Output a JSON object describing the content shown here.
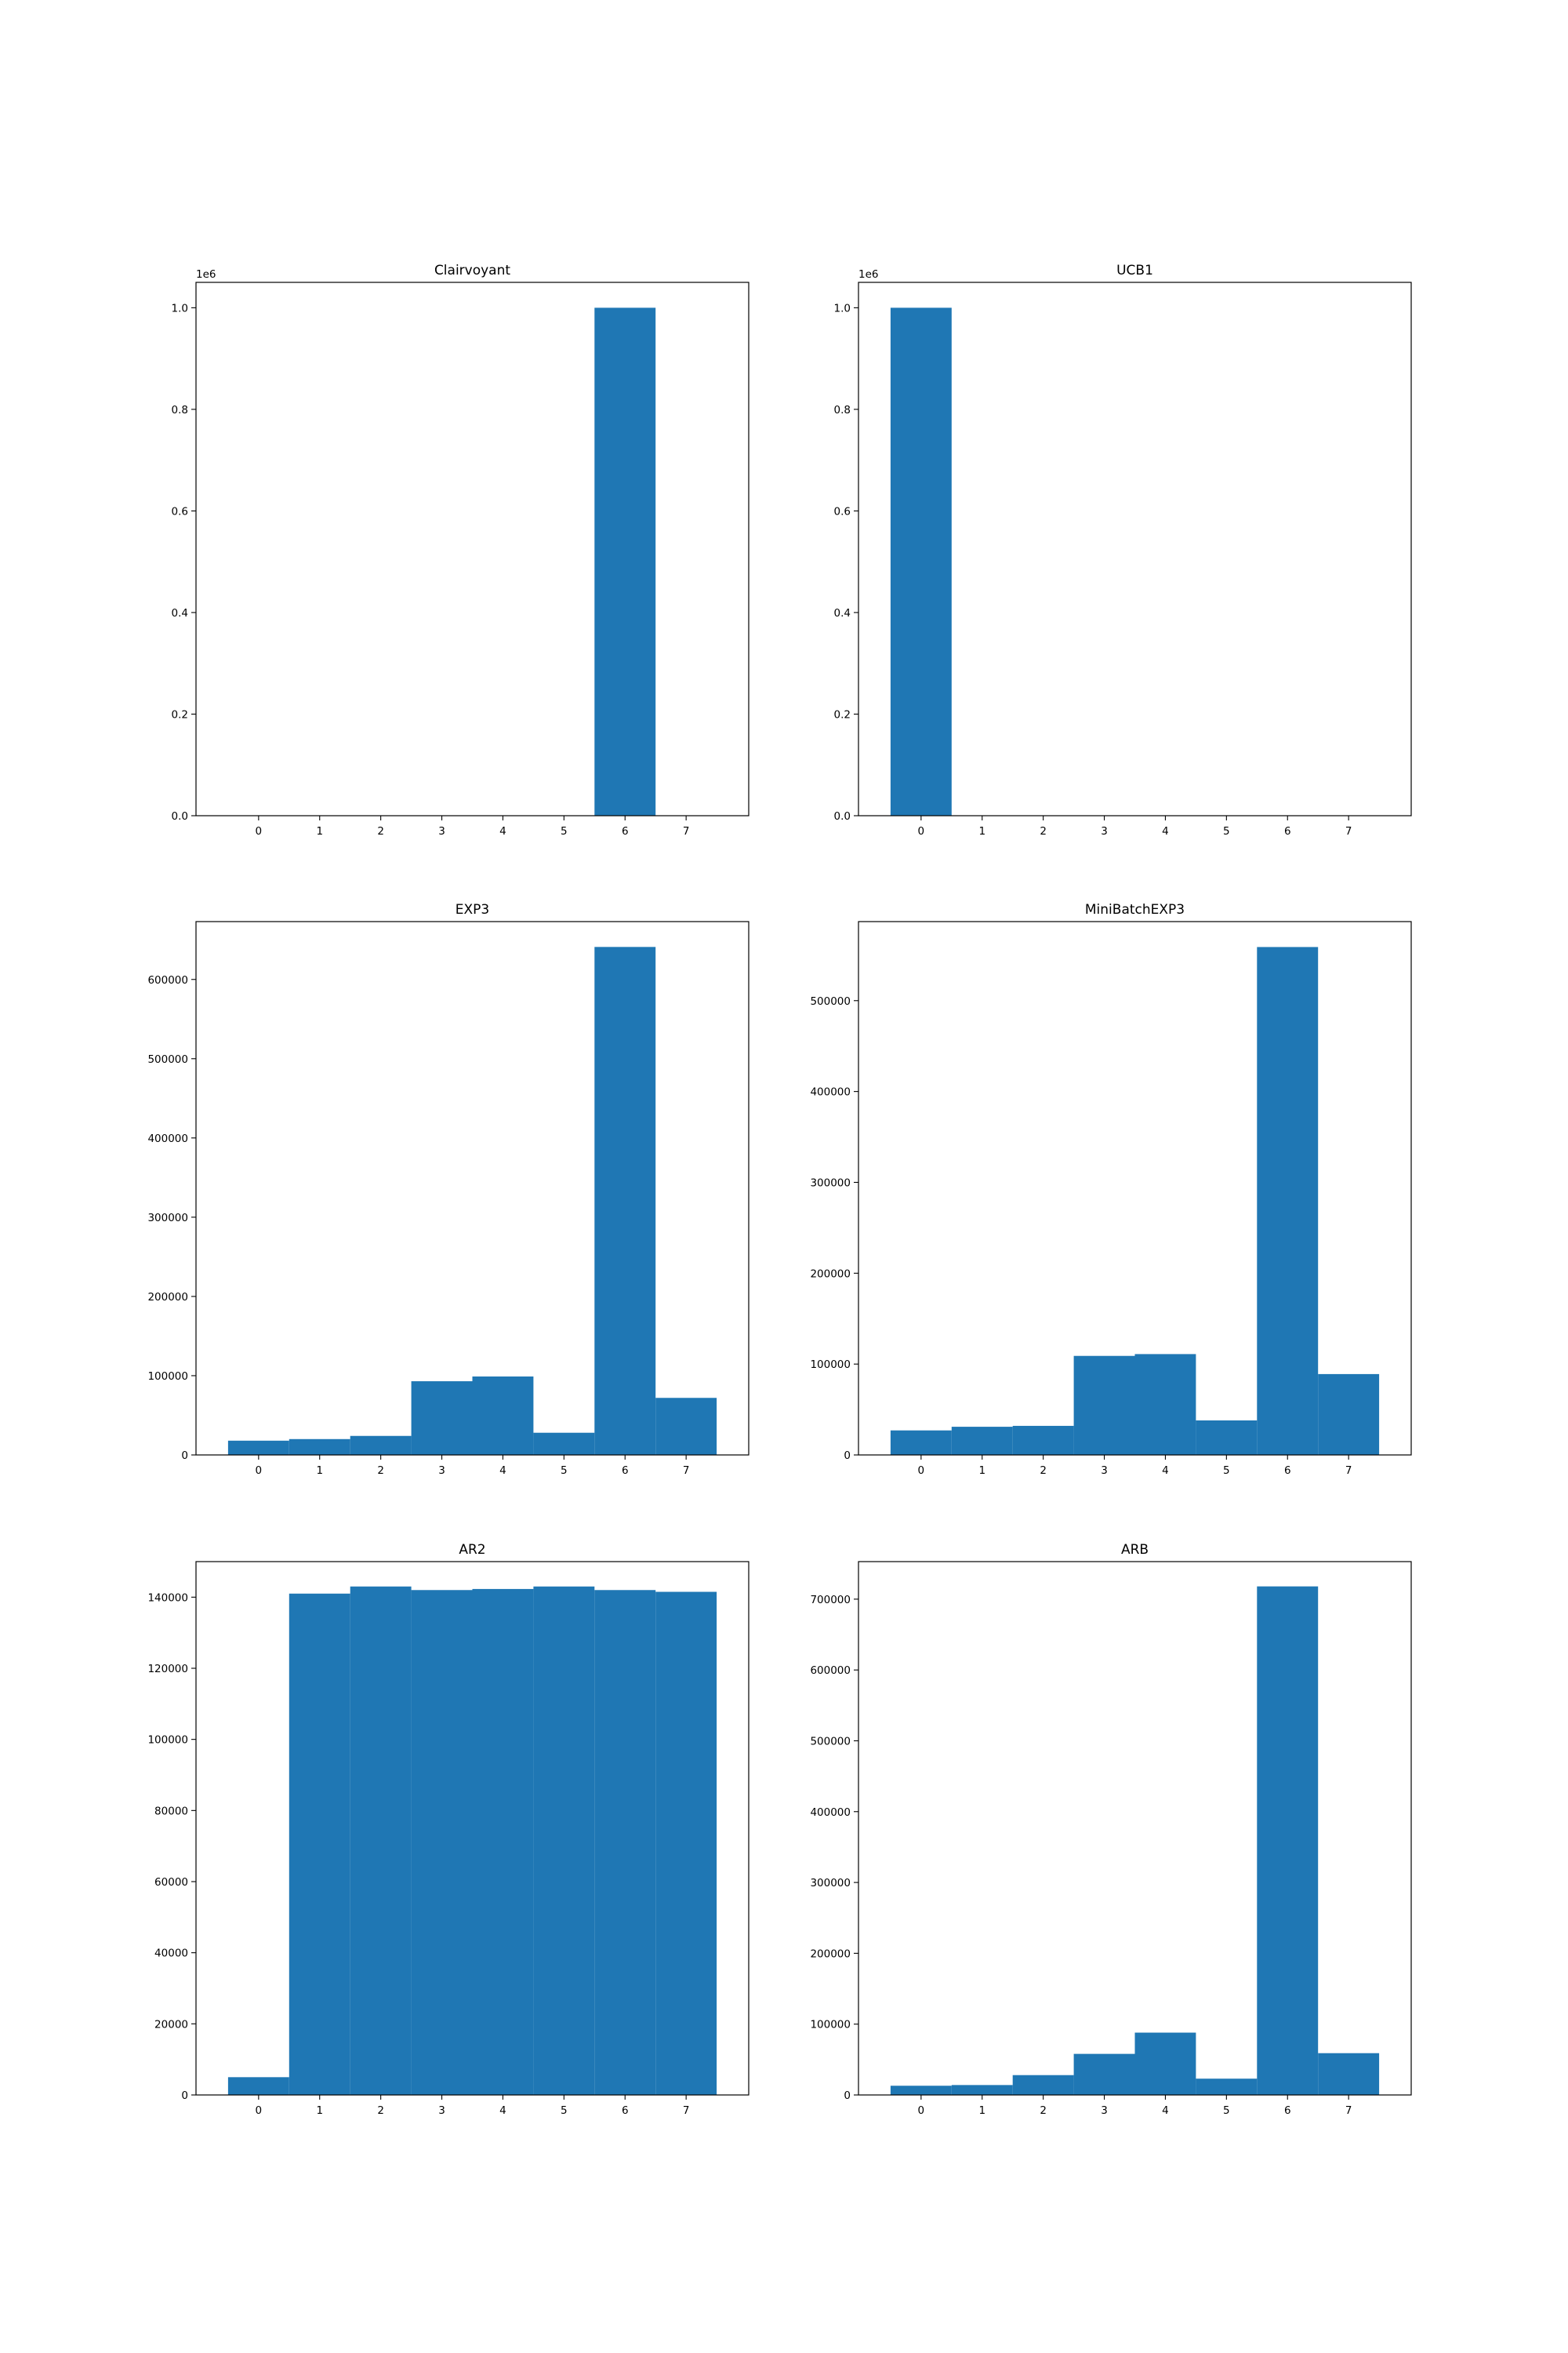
{
  "figure": {
    "background": "#ffffff",
    "bar_color": "#1f77b4"
  },
  "chart_data": [
    {
      "type": "bar",
      "title": "Clairvoyant",
      "categories": [
        "0",
        "1",
        "2",
        "3",
        "4",
        "5",
        "6",
        "7"
      ],
      "values": [
        0,
        0,
        0,
        0,
        0,
        0,
        1000000,
        0
      ],
      "ylim": [
        0,
        1050000
      ],
      "yticks": [
        0,
        200000,
        400000,
        600000,
        800000,
        1000000
      ],
      "ytick_labels": [
        "0.0",
        "0.2",
        "0.4",
        "0.6",
        "0.8",
        "1.0"
      ],
      "offset_label": "1e6",
      "xlabel": "",
      "ylabel": ""
    },
    {
      "type": "bar",
      "title": "UCB1",
      "categories": [
        "0",
        "1",
        "2",
        "3",
        "4",
        "5",
        "6",
        "7"
      ],
      "values": [
        1000000,
        0,
        0,
        0,
        0,
        0,
        0,
        0
      ],
      "ylim": [
        0,
        1050000
      ],
      "yticks": [
        0,
        200000,
        400000,
        600000,
        800000,
        1000000
      ],
      "ytick_labels": [
        "0.0",
        "0.2",
        "0.4",
        "0.6",
        "0.8",
        "1.0"
      ],
      "offset_label": "1e6",
      "xlabel": "",
      "ylabel": ""
    },
    {
      "type": "bar",
      "title": "EXP3",
      "categories": [
        "0",
        "1",
        "2",
        "3",
        "4",
        "5",
        "6",
        "7"
      ],
      "values": [
        18000,
        20000,
        24000,
        93000,
        99000,
        28000,
        641000,
        72000
      ],
      "ylim": [
        0,
        673000
      ],
      "yticks": [
        0,
        100000,
        200000,
        300000,
        400000,
        500000,
        600000
      ],
      "ytick_labels": [
        "0",
        "100000",
        "200000",
        "300000",
        "400000",
        "500000",
        "600000"
      ],
      "offset_label": "",
      "xlabel": "",
      "ylabel": ""
    },
    {
      "type": "bar",
      "title": "MiniBatchEXP3",
      "categories": [
        "0",
        "1",
        "2",
        "3",
        "4",
        "5",
        "6",
        "7"
      ],
      "values": [
        27000,
        31000,
        32000,
        109000,
        111000,
        38000,
        559000,
        89000
      ],
      "ylim": [
        0,
        587000
      ],
      "yticks": [
        0,
        100000,
        200000,
        300000,
        400000,
        500000
      ],
      "ytick_labels": [
        "0",
        "100000",
        "200000",
        "300000",
        "400000",
        "500000"
      ],
      "offset_label": "",
      "xlabel": "",
      "ylabel": ""
    },
    {
      "type": "bar",
      "title": "AR2",
      "categories": [
        "0",
        "1",
        "2",
        "3",
        "4",
        "5",
        "6",
        "7"
      ],
      "values": [
        5000,
        141000,
        143000,
        142000,
        142300,
        143000,
        142000,
        141500
      ],
      "ylim": [
        0,
        150000
      ],
      "yticks": [
        0,
        20000,
        40000,
        60000,
        80000,
        100000,
        120000,
        140000
      ],
      "ytick_labels": [
        "0",
        "20000",
        "40000",
        "60000",
        "80000",
        "100000",
        "120000",
        "140000"
      ],
      "offset_label": "",
      "xlabel": "",
      "ylabel": ""
    },
    {
      "type": "bar",
      "title": "ARB",
      "categories": [
        "0",
        "1",
        "2",
        "3",
        "4",
        "5",
        "6",
        "7"
      ],
      "values": [
        13000,
        14000,
        28000,
        58000,
        88000,
        23000,
        718000,
        59000
      ],
      "ylim": [
        0,
        753000
      ],
      "yticks": [
        0,
        100000,
        200000,
        300000,
        400000,
        500000,
        600000,
        700000
      ],
      "ytick_labels": [
        "0",
        "100000",
        "200000",
        "300000",
        "400000",
        "500000",
        "600000",
        "700000"
      ],
      "offset_label": "",
      "xlabel": "",
      "ylabel": ""
    }
  ]
}
